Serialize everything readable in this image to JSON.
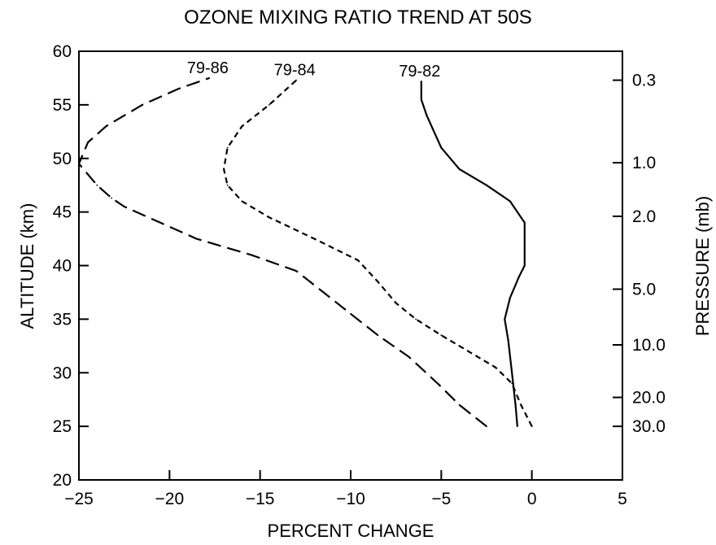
{
  "chart_data": {
    "type": "line",
    "title": "OZONE MIXING  RATIO TREND AT 50S",
    "xlabel": "PERCENT CHANGE",
    "ylabel": "ALTITUDE (km)",
    "y2label": "PRESSURE (mb)",
    "xlim": [
      -25,
      5
    ],
    "ylim": [
      20,
      60
    ],
    "x_ticks": [
      -25,
      -20,
      -15,
      -10,
      -5,
      0,
      5
    ],
    "x_tick_labels": [
      "−25",
      "−20",
      "−15",
      "−10",
      "−5",
      "0",
      "5"
    ],
    "y_ticks": [
      20,
      25,
      30,
      35,
      40,
      45,
      50,
      55,
      60
    ],
    "y_tick_labels": [
      "20",
      "25",
      "30",
      "35",
      "40",
      "45",
      "50",
      "55",
      "60"
    ],
    "pressure_ticks": [
      {
        "altitude": 57.3,
        "label": "0.3"
      },
      {
        "altitude": 49.6,
        "label": "1.0"
      },
      {
        "altitude": 44.6,
        "label": "2.0"
      },
      {
        "altitude": 37.8,
        "label": "5.0"
      },
      {
        "altitude": 32.6,
        "label": "10.0"
      },
      {
        "altitude": 27.7,
        "label": "20.0"
      },
      {
        "altitude": 25.0,
        "label": "30.0"
      }
    ],
    "grid": false,
    "series": [
      {
        "name": "79-82",
        "line_style": "solid",
        "points": [
          [
            -0.8,
            25
          ],
          [
            -0.9,
            27
          ],
          [
            -1.1,
            30
          ],
          [
            -1.3,
            33
          ],
          [
            -1.5,
            35
          ],
          [
            -1.2,
            37
          ],
          [
            -0.7,
            39
          ],
          [
            -0.4,
            40
          ],
          [
            -0.4,
            42
          ],
          [
            -0.4,
            44
          ],
          [
            -1.2,
            46
          ],
          [
            -2.5,
            47.5
          ],
          [
            -4.0,
            49
          ],
          [
            -5.0,
            51
          ],
          [
            -5.8,
            54
          ],
          [
            -6.1,
            55.5
          ],
          [
            -6.1,
            57.2
          ]
        ]
      },
      {
        "name": "79-84",
        "line_style": "short-dash",
        "points": [
          [
            0,
            25
          ],
          [
            -0.6,
            27
          ],
          [
            -1.1,
            29
          ],
          [
            -2.0,
            30.5
          ],
          [
            -3.5,
            32
          ],
          [
            -5.0,
            33.5
          ],
          [
            -6.4,
            35
          ],
          [
            -7.5,
            36.5
          ],
          [
            -8.5,
            38.5
          ],
          [
            -9.6,
            40.5
          ],
          [
            -12.0,
            42.5
          ],
          [
            -14.5,
            44.5
          ],
          [
            -16.0,
            46
          ],
          [
            -16.8,
            47.5
          ],
          [
            -17.0,
            49
          ],
          [
            -16.8,
            51
          ],
          [
            -16.0,
            53
          ],
          [
            -14.5,
            55
          ],
          [
            -13.0,
            57.3
          ]
        ]
      },
      {
        "name": "79-86",
        "line_style": "long-dash",
        "points": [
          [
            -2.5,
            25
          ],
          [
            -4.0,
            27
          ],
          [
            -5.2,
            29
          ],
          [
            -6.8,
            31.5
          ],
          [
            -8.5,
            33.5
          ],
          [
            -10.0,
            35.5
          ],
          [
            -11.5,
            37.5
          ],
          [
            -13.0,
            39.5
          ],
          [
            -15.5,
            41
          ],
          [
            -18.5,
            42.5
          ],
          [
            -20.5,
            44
          ],
          [
            -22.5,
            45.5
          ],
          [
            -23.2,
            46.3
          ],
          [
            -24.0,
            47.5
          ],
          [
            -25.0,
            49.5
          ],
          [
            -24.5,
            51.5
          ],
          [
            -23.5,
            53
          ],
          [
            -21.5,
            55
          ],
          [
            -19.5,
            56.5
          ],
          [
            -17.8,
            57.5
          ]
        ]
      }
    ]
  }
}
